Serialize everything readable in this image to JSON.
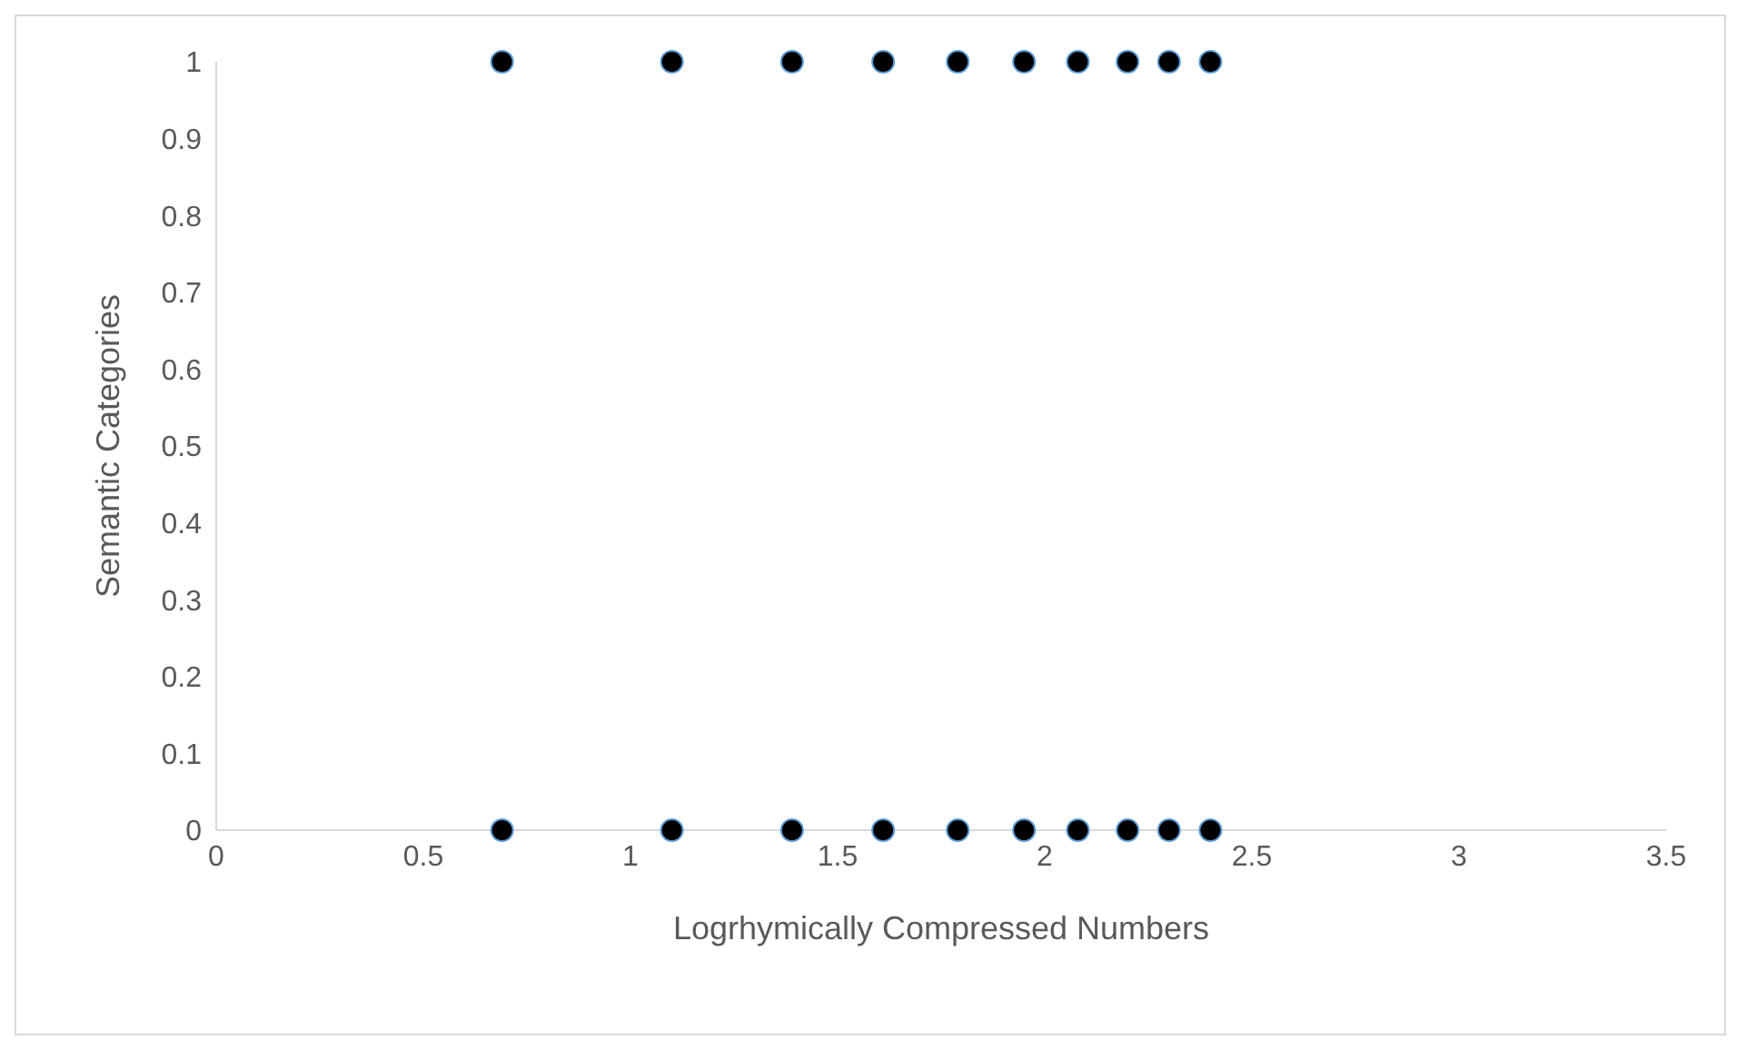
{
  "chart_data": {
    "type": "scatter",
    "xlabel": "Logrhymically Compressed Numbers",
    "ylabel": "Semantic Categories",
    "x": [
      0.69,
      1.1,
      1.39,
      1.61,
      1.79,
      1.95,
      2.08,
      2.2,
      2.3,
      2.4,
      0.69,
      1.1,
      1.39,
      1.61,
      1.79,
      1.95,
      2.08,
      2.2,
      2.3,
      2.4
    ],
    "values": [
      1,
      1,
      1,
      1,
      1,
      1,
      1,
      1,
      1,
      1,
      0,
      0,
      0,
      0,
      0,
      0,
      0,
      0,
      0,
      0
    ],
    "color": "#000000",
    "marker": "circle",
    "xlim": [
      0,
      3.5
    ],
    "xticks": [
      0,
      0.5,
      1,
      1.5,
      2,
      2.5,
      3,
      3.5
    ],
    "ylim": [
      0,
      1
    ],
    "yticks": [
      0,
      0.1,
      0.2,
      0.3,
      0.4,
      0.5,
      0.6,
      0.7,
      0.8,
      0.9,
      1
    ],
    "grid": false,
    "legend": false
  }
}
